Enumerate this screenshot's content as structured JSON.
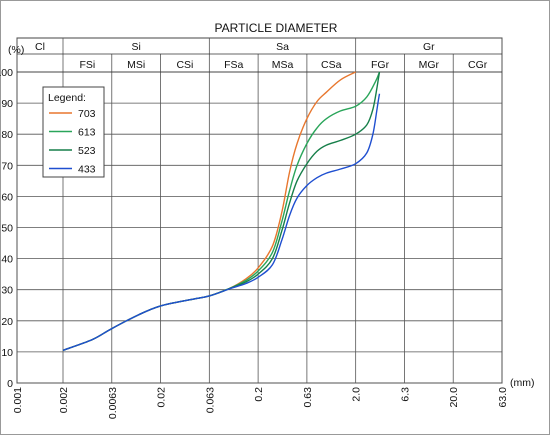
{
  "chart_data": {
    "type": "line",
    "title": "PARTICLE DIAMETER",
    "ylabel": "(%)",
    "xlabel": "(mm)",
    "x_scale": "log",
    "x_ticks": [
      "0.001",
      "0.002",
      "0.0063",
      "0.02",
      "0.063",
      "0.2",
      "0.63",
      "2.0",
      "6.3",
      "20.0",
      "63.0"
    ],
    "ylim": [
      0,
      100
    ],
    "y_ticks": [
      0,
      10,
      20,
      30,
      40,
      50,
      60,
      70,
      80,
      90,
      100
    ],
    "grid": true,
    "header": {
      "groups": [
        {
          "label": "Cl",
          "from": "0.001",
          "to": "0.002"
        },
        {
          "label": "Si",
          "from": "0.002",
          "to": "0.063"
        },
        {
          "label": "Sa",
          "from": "0.063",
          "to": "2.0"
        },
        {
          "label": "Gr",
          "from": "2.0",
          "to": "63.0"
        }
      ],
      "subgroups": [
        {
          "label": "FSi",
          "from": "0.002",
          "to": "0.0063"
        },
        {
          "label": "MSi",
          "from": "0.0063",
          "to": "0.02"
        },
        {
          "label": "CSi",
          "from": "0.02",
          "to": "0.063"
        },
        {
          "label": "FSa",
          "from": "0.063",
          "to": "0.2"
        },
        {
          "label": "MSa",
          "from": "0.2",
          "to": "0.63"
        },
        {
          "label": "CSa",
          "from": "0.63",
          "to": "2.0"
        },
        {
          "label": "FGr",
          "from": "2.0",
          "to": "6.3"
        },
        {
          "label": "MGr",
          "from": "6.3",
          "to": "20.0"
        },
        {
          "label": "CGr",
          "from": "20.0",
          "to": "63.0"
        }
      ]
    },
    "legend": {
      "title": "Legend:",
      "position": "top-left"
    },
    "series": [
      {
        "name": "703",
        "color": "#e8772e",
        "points": [
          [
            0.002,
            10.5
          ],
          [
            0.004,
            14
          ],
          [
            0.0063,
            17.5
          ],
          [
            0.012,
            22
          ],
          [
            0.02,
            24.8
          ],
          [
            0.04,
            26.8
          ],
          [
            0.063,
            28
          ],
          [
            0.1,
            30.3
          ],
          [
            0.15,
            33.5
          ],
          [
            0.2,
            37
          ],
          [
            0.28,
            44
          ],
          [
            0.35,
            55
          ],
          [
            0.42,
            68
          ],
          [
            0.5,
            77
          ],
          [
            0.63,
            85
          ],
          [
            0.8,
            90.5
          ],
          [
            1.0,
            93.5
          ],
          [
            1.4,
            97.5
          ],
          [
            2.0,
            100
          ]
        ]
      },
      {
        "name": "613",
        "color": "#2aa55a",
        "points": [
          [
            0.002,
            10.5
          ],
          [
            0.004,
            14
          ],
          [
            0.0063,
            17.5
          ],
          [
            0.012,
            22
          ],
          [
            0.02,
            24.8
          ],
          [
            0.04,
            26.8
          ],
          [
            0.063,
            28
          ],
          [
            0.1,
            30.3
          ],
          [
            0.15,
            33
          ],
          [
            0.2,
            36
          ],
          [
            0.28,
            42
          ],
          [
            0.35,
            52
          ],
          [
            0.42,
            62
          ],
          [
            0.5,
            70
          ],
          [
            0.63,
            77
          ],
          [
            0.8,
            82
          ],
          [
            1.0,
            85
          ],
          [
            1.4,
            87.5
          ],
          [
            2.0,
            89
          ],
          [
            2.6,
            92
          ],
          [
            3.2,
            97
          ],
          [
            3.5,
            100
          ]
        ]
      },
      {
        "name": "523",
        "color": "#177f4a",
        "points": [
          [
            0.002,
            10.5
          ],
          [
            0.004,
            14
          ],
          [
            0.0063,
            17.5
          ],
          [
            0.012,
            22
          ],
          [
            0.02,
            24.8
          ],
          [
            0.04,
            26.8
          ],
          [
            0.063,
            28
          ],
          [
            0.1,
            30.3
          ],
          [
            0.15,
            32.5
          ],
          [
            0.2,
            35
          ],
          [
            0.28,
            40
          ],
          [
            0.35,
            49
          ],
          [
            0.42,
            58
          ],
          [
            0.5,
            65
          ],
          [
            0.63,
            70.5
          ],
          [
            0.8,
            74.5
          ],
          [
            1.0,
            76.5
          ],
          [
            1.4,
            78
          ],
          [
            2.0,
            80
          ],
          [
            2.6,
            83
          ],
          [
            3.0,
            88
          ],
          [
            3.3,
            95
          ],
          [
            3.5,
            100
          ]
        ]
      },
      {
        "name": "433",
        "color": "#1f4fd0",
        "points": [
          [
            0.002,
            10.5
          ],
          [
            0.004,
            14
          ],
          [
            0.0063,
            17.5
          ],
          [
            0.012,
            22
          ],
          [
            0.02,
            24.8
          ],
          [
            0.04,
            26.8
          ],
          [
            0.063,
            28
          ],
          [
            0.1,
            30.2
          ],
          [
            0.15,
            32
          ],
          [
            0.2,
            34
          ],
          [
            0.28,
            38
          ],
          [
            0.35,
            46
          ],
          [
            0.42,
            54
          ],
          [
            0.5,
            59.5
          ],
          [
            0.63,
            63.5
          ],
          [
            0.8,
            66
          ],
          [
            1.0,
            67.5
          ],
          [
            1.4,
            68.8
          ],
          [
            2.0,
            70.5
          ],
          [
            2.6,
            74
          ],
          [
            3.0,
            80
          ],
          [
            3.3,
            88
          ],
          [
            3.5,
            93
          ]
        ]
      }
    ]
  }
}
